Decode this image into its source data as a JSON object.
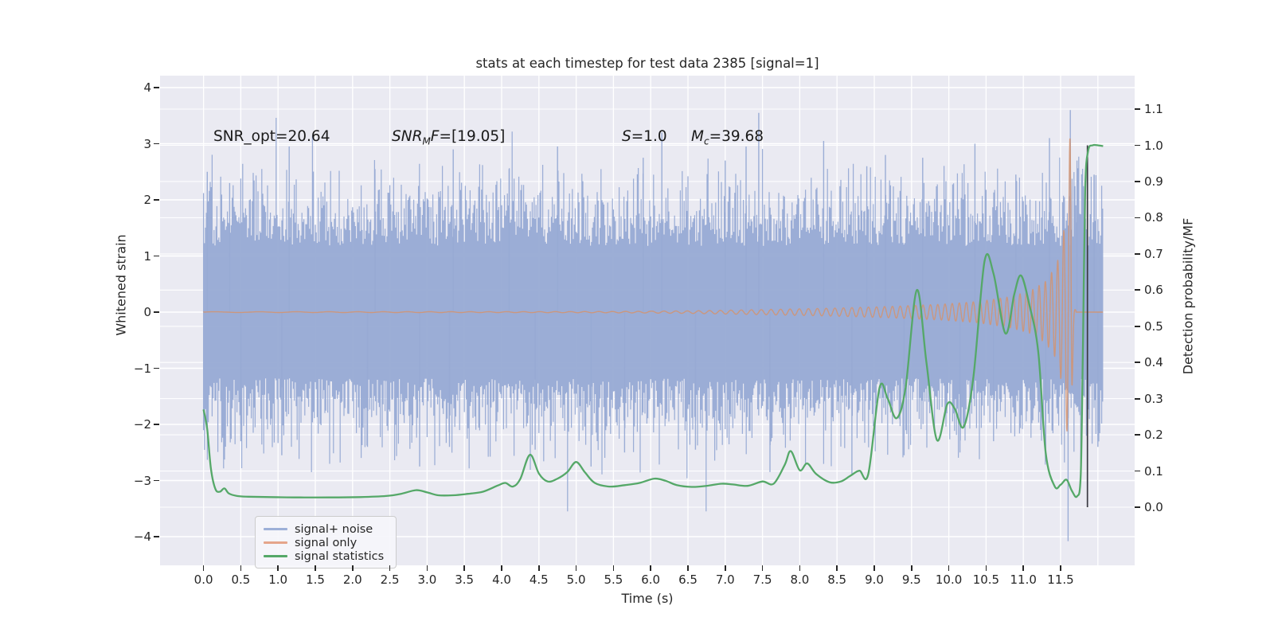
{
  "title": "stats at each timestep for test data 2385 [signal=1]",
  "annotations": {
    "snr_opt": "SNR_opt=20.64",
    "snr_mf_pre": "SNR",
    "snr_mf_sub": "M",
    "snr_mf_post": "F",
    "snr_mf_val": "=[19.05]",
    "s_pre": "S",
    "s_val": "=1.0",
    "mc_pre": "M",
    "mc_sub": "c",
    "mc_val": "=39.68"
  },
  "axes": {
    "left": {
      "label": "Whitened strain",
      "tick_labels": [
        "4",
        "3",
        "2",
        "1",
        "0",
        "−1",
        "−2",
        "−3",
        "−4"
      ],
      "tick_values": [
        4,
        3,
        2,
        1,
        0,
        -1,
        -2,
        -3,
        -4
      ]
    },
    "right": {
      "label": "Detection probability/MF",
      "tick_labels": [
        "1.1",
        "1.0",
        "0.9",
        "0.8",
        "0.7",
        "0.6",
        "0.5",
        "0.4",
        "0.3",
        "0.2",
        "0.1",
        "0.0"
      ],
      "tick_values": [
        1.1,
        1.0,
        0.9,
        0.8,
        0.7,
        0.6,
        0.5,
        0.4,
        0.3,
        0.2,
        0.1,
        0.0
      ]
    },
    "bottom": {
      "label": "Time (s)",
      "tick_labels": [
        "0.0",
        "0.5",
        "1.0",
        "1.5",
        "2.0",
        "2.5",
        "3.0",
        "3.5",
        "4.0",
        "4.5",
        "5.0",
        "5.5",
        "6.0",
        "6.5",
        "7.0",
        "7.5",
        "8.0",
        "8.5",
        "9.0",
        "9.5",
        "10.0",
        "10.5",
        "11.0",
        "11.5"
      ],
      "tick_values": [
        0,
        0.5,
        1,
        1.5,
        2,
        2.5,
        3,
        3.5,
        4,
        4.5,
        5,
        5.5,
        6,
        6.5,
        7,
        7.5,
        8,
        8.5,
        9,
        9.5,
        10,
        10.5,
        11,
        11.5
      ]
    }
  },
  "legend": {
    "items": [
      {
        "label": "signal+ noise",
        "color": "#9db0d8"
      },
      {
        "label": "signal only",
        "color": "#e5a58a"
      },
      {
        "label": "signal statistics",
        "color": "#55a868"
      }
    ]
  },
  "colors": {
    "plot_bg": "#eaeaf2",
    "grid": "#ffffff",
    "noise": "#97aad4",
    "signal": "#d4936f",
    "stats": "#55a868",
    "marker": "#3a3a42",
    "text": "#262626"
  },
  "chart_data": {
    "type": "line",
    "title": "stats at each timestep for test data 2385 [signal=1]",
    "xlabel": "Time (s)",
    "ylabel_left": "Whitened strain",
    "ylabel_right": "Detection probability/MF",
    "x_range_data": [
      0,
      12.07
    ],
    "xlim": [
      -0.58,
      12.5
    ],
    "ylim_left": [
      -4.51,
      4.21
    ],
    "ylim_right": [
      -0.16,
      1.19
    ],
    "grid": "both-axes-white",
    "legend_position": "lower-left",
    "series_stats_probability": {
      "name": "signal statistics",
      "axis": "right",
      "points": [
        [
          0.0,
          0.27
        ],
        [
          0.05,
          0.215
        ],
        [
          0.1,
          0.105
        ],
        [
          0.16,
          0.05
        ],
        [
          0.22,
          0.043
        ],
        [
          0.28,
          0.052
        ],
        [
          0.34,
          0.038
        ],
        [
          0.45,
          0.031
        ],
        [
          0.6,
          0.029
        ],
        [
          0.9,
          0.028
        ],
        [
          1.3,
          0.027
        ],
        [
          1.7,
          0.027
        ],
        [
          2.1,
          0.028
        ],
        [
          2.45,
          0.031
        ],
        [
          2.65,
          0.037
        ],
        [
          2.85,
          0.047
        ],
        [
          3.0,
          0.041
        ],
        [
          3.15,
          0.033
        ],
        [
          3.35,
          0.033
        ],
        [
          3.55,
          0.037
        ],
        [
          3.75,
          0.043
        ],
        [
          3.95,
          0.06
        ],
        [
          4.05,
          0.067
        ],
        [
          4.15,
          0.057
        ],
        [
          4.25,
          0.078
        ],
        [
          4.38,
          0.145
        ],
        [
          4.5,
          0.093
        ],
        [
          4.62,
          0.071
        ],
        [
          4.75,
          0.079
        ],
        [
          4.88,
          0.097
        ],
        [
          5.0,
          0.125
        ],
        [
          5.12,
          0.096
        ],
        [
          5.25,
          0.067
        ],
        [
          5.45,
          0.057
        ],
        [
          5.65,
          0.061
        ],
        [
          5.85,
          0.067
        ],
        [
          6.05,
          0.079
        ],
        [
          6.2,
          0.073
        ],
        [
          6.35,
          0.061
        ],
        [
          6.55,
          0.056
        ],
        [
          6.75,
          0.059
        ],
        [
          6.95,
          0.065
        ],
        [
          7.1,
          0.063
        ],
        [
          7.3,
          0.059
        ],
        [
          7.5,
          0.071
        ],
        [
          7.65,
          0.065
        ],
        [
          7.8,
          0.118
        ],
        [
          7.88,
          0.155
        ],
        [
          8.0,
          0.102
        ],
        [
          8.1,
          0.121
        ],
        [
          8.22,
          0.092
        ],
        [
          8.4,
          0.069
        ],
        [
          8.55,
          0.071
        ],
        [
          8.68,
          0.087
        ],
        [
          8.8,
          0.101
        ],
        [
          8.92,
          0.092
        ],
        [
          9.07,
          0.33
        ],
        [
          9.18,
          0.3
        ],
        [
          9.3,
          0.246
        ],
        [
          9.42,
          0.33
        ],
        [
          9.57,
          0.6
        ],
        [
          9.7,
          0.4
        ],
        [
          9.84,
          0.186
        ],
        [
          9.98,
          0.285
        ],
        [
          10.08,
          0.272
        ],
        [
          10.2,
          0.222
        ],
        [
          10.33,
          0.36
        ],
        [
          10.48,
          0.68
        ],
        [
          10.6,
          0.645
        ],
        [
          10.76,
          0.48
        ],
        [
          10.88,
          0.59
        ],
        [
          10.97,
          0.64
        ],
        [
          11.08,
          0.56
        ],
        [
          11.2,
          0.43
        ],
        [
          11.3,
          0.15
        ],
        [
          11.42,
          0.058
        ],
        [
          11.5,
          0.062
        ],
        [
          11.58,
          0.076
        ],
        [
          11.65,
          0.046
        ],
        [
          11.72,
          0.03
        ],
        [
          11.77,
          0.09
        ],
        [
          11.8,
          0.45
        ],
        [
          11.83,
          0.88
        ],
        [
          11.87,
          0.985
        ],
        [
          11.93,
          1.0
        ],
        [
          12.0,
          1.0
        ],
        [
          12.07,
          0.998
        ]
      ]
    },
    "series_signal_chirp": {
      "name": "signal only",
      "axis": "left",
      "merger_time": 11.645,
      "peak_amplitude": 3.85,
      "post_merger_level": 0.0,
      "amplitude_envelope": [
        [
          0,
          0.006
        ],
        [
          4,
          0.008
        ],
        [
          5.5,
          0.012
        ],
        [
          6.5,
          0.022
        ],
        [
          7.5,
          0.045
        ],
        [
          8.5,
          0.072
        ],
        [
          9.2,
          0.1
        ],
        [
          9.9,
          0.14
        ],
        [
          10.4,
          0.19
        ],
        [
          10.8,
          0.27
        ],
        [
          11.1,
          0.38
        ],
        [
          11.3,
          0.55
        ],
        [
          11.45,
          0.85
        ],
        [
          11.55,
          1.5
        ],
        [
          11.61,
          2.6
        ],
        [
          11.645,
          3.85
        ]
      ],
      "freq_model": "f(t)=1.4*(1+t/4)^1.6 Hz, ringdown tau 0.012 s"
    },
    "series_noise": {
      "name": "signal+ noise",
      "axis": "left",
      "description": "dense whitened-noise band, solid core about ±1.2, frequent excursions to ±2, rare spikes to ±3.5",
      "core_halfwidth": 1.18,
      "spike_sigma": 0.62,
      "signature_spikes": [
        [
          0.05,
          2.5
        ],
        [
          0.35,
          2.3
        ],
        [
          1.15,
          2.95
        ],
        [
          2.3,
          2.55
        ],
        [
          3.35,
          2.9
        ],
        [
          4.1,
          2.55
        ],
        [
          4.75,
          2.95
        ],
        [
          5.9,
          2.75
        ],
        [
          6.15,
          3.2
        ],
        [
          7.0,
          2.7
        ],
        [
          7.28,
          2.95
        ],
        [
          7.45,
          3.55
        ],
        [
          8.32,
          3.05
        ],
        [
          8.9,
          2.6
        ],
        [
          9.15,
          2.8
        ],
        [
          9.65,
          2.75
        ],
        [
          10.35,
          3.0
        ],
        [
          10.9,
          2.45
        ],
        [
          11.35,
          3.1
        ],
        [
          11.63,
          3.6
        ],
        [
          11.72,
          2.7
        ],
        [
          11.95,
          2.45
        ],
        [
          0.5,
          -2.3
        ],
        [
          1.05,
          -2.55
        ],
        [
          2.2,
          -2.4
        ],
        [
          2.9,
          -2.75
        ],
        [
          3.3,
          -2.4
        ],
        [
          4.45,
          -2.45
        ],
        [
          5.2,
          -2.75
        ],
        [
          5.65,
          -2.5
        ],
        [
          6.6,
          -2.45
        ],
        [
          7.6,
          -2.85
        ],
        [
          8.7,
          -2.9
        ],
        [
          9.4,
          -2.55
        ],
        [
          10.15,
          -2.5
        ],
        [
          10.6,
          -2.3
        ],
        [
          11.3,
          -2.6
        ],
        [
          11.6,
          -4.08
        ],
        [
          12.0,
          -2.4
        ]
      ]
    },
    "marker_line": {
      "t": 11.86,
      "from_probability": 0.0,
      "to_probability": 1.0
    }
  }
}
